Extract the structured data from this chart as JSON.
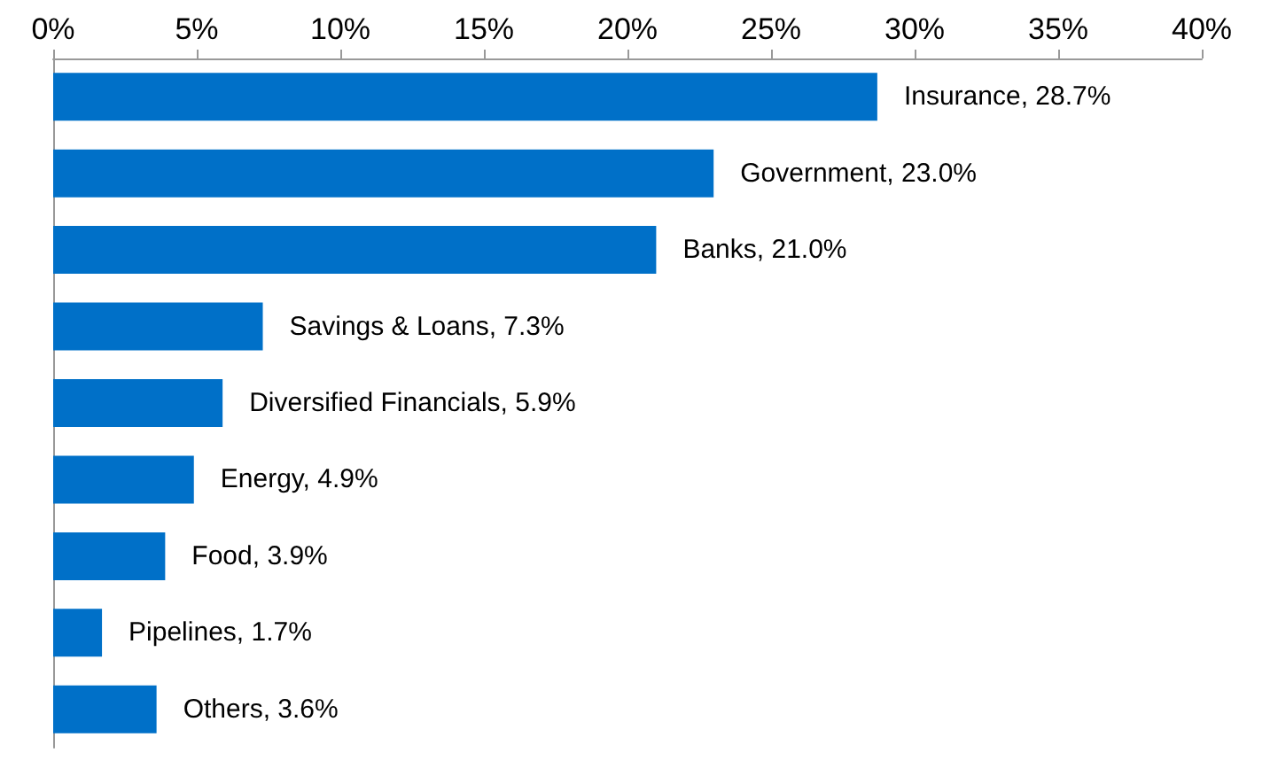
{
  "chart_data": {
    "type": "bar",
    "orientation": "horizontal",
    "categories": [
      null,
      null,
      null,
      null,
      null,
      null,
      null,
      null,
      null
    ],
    "values": [
      28.7,
      23.0,
      21.0,
      7.3,
      5.9,
      4.9,
      3.9,
      1.7,
      3.6
    ],
    "value_labels": [
      "Insurance, 28.7%",
      "Government, 23.0%",
      "Banks, 21.0%",
      "Savings & Loans, 7.3%",
      "Diversified Financials, 5.9%",
      "Energy, 4.9%",
      "Food, 3.9%",
      "Pipelines, 1.7%",
      "Others, 3.6%"
    ],
    "color": "#0070c8",
    "xlim": [
      0,
      40
    ],
    "xticks": [
      {
        "value": 0,
        "label": "0%"
      },
      {
        "value": 5,
        "label": "5%"
      },
      {
        "value": 10,
        "label": "10%"
      },
      {
        "value": 15,
        "label": "15%"
      },
      {
        "value": 20,
        "label": "20%"
      },
      {
        "value": 25,
        "label": "25%"
      },
      {
        "value": 30,
        "label": "30%"
      },
      {
        "value": 35,
        "label": "35%"
      },
      {
        "value": 40,
        "label": "40%"
      }
    ],
    "tick_labels": "x",
    "grid": false
  }
}
